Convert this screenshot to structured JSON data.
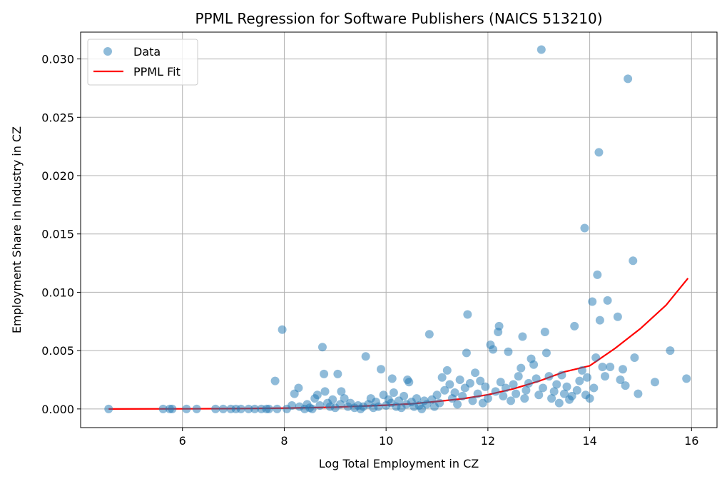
{
  "chart_data": {
    "type": "scatter",
    "title": "PPML Regression for Software Publishers (NAICS 513210)",
    "xlabel": "Log Total Employment in CZ",
    "ylabel": "Employment Share in Industry in CZ",
    "xlim": [
      4.0,
      16.5
    ],
    "ylim": [
      -0.0016,
      0.0323
    ],
    "xticks": [
      6,
      8,
      10,
      12,
      14,
      16
    ],
    "xtick_labels": [
      "6",
      "8",
      "10",
      "12",
      "14",
      "16"
    ],
    "yticks": [
      0.0,
      0.005,
      0.01,
      0.015,
      0.02,
      0.025,
      0.03
    ],
    "ytick_labels": [
      "0.000",
      "0.005",
      "0.010",
      "0.015",
      "0.020",
      "0.025",
      "0.030"
    ],
    "grid": true,
    "legend_position": "top-left",
    "colors": {
      "data": "#1f77b4",
      "fit": "#ff0000"
    },
    "series": [
      {
        "name": "Data",
        "kind": "scatter",
        "points": [
          [
            4.55,
            0.0
          ],
          [
            5.62,
            0.0
          ],
          [
            5.75,
            0.0
          ],
          [
            5.8,
            0.0
          ],
          [
            6.08,
            0.0
          ],
          [
            6.28,
            0.0
          ],
          [
            6.65,
            0.0
          ],
          [
            6.8,
            0.0
          ],
          [
            6.95,
            0.0
          ],
          [
            7.05,
            0.0
          ],
          [
            7.15,
            0.0
          ],
          [
            7.3,
            0.0
          ],
          [
            7.42,
            0.0
          ],
          [
            7.55,
            0.0
          ],
          [
            7.65,
            0.0
          ],
          [
            7.7,
            0.0
          ],
          [
            7.82,
            0.0024
          ],
          [
            7.86,
            0.0
          ],
          [
            7.96,
            0.0068
          ],
          [
            8.05,
            0.0
          ],
          [
            8.15,
            0.0003
          ],
          [
            8.2,
            0.0013
          ],
          [
            8.28,
            0.0018
          ],
          [
            8.3,
            0.0002
          ],
          [
            8.4,
            0.0
          ],
          [
            8.45,
            0.0004
          ],
          [
            8.5,
            0.0001
          ],
          [
            8.55,
            0.0
          ],
          [
            8.6,
            0.0009
          ],
          [
            8.65,
            0.0012
          ],
          [
            8.7,
            0.0003
          ],
          [
            8.75,
            0.0053
          ],
          [
            8.78,
            0.003
          ],
          [
            8.8,
            0.0015
          ],
          [
            8.85,
            0.0005
          ],
          [
            8.9,
            0.0002
          ],
          [
            8.95,
            0.0008
          ],
          [
            9.0,
            0.0001
          ],
          [
            9.05,
            0.003
          ],
          [
            9.1,
            0.0004
          ],
          [
            9.12,
            0.0015
          ],
          [
            9.18,
            0.0009
          ],
          [
            9.25,
            0.0002
          ],
          [
            9.3,
            0.0005
          ],
          [
            9.38,
            0.0001
          ],
          [
            9.45,
            0.0003
          ],
          [
            9.5,
            0.0
          ],
          [
            9.55,
            0.0002
          ],
          [
            9.6,
            0.0045
          ],
          [
            9.65,
            0.0004
          ],
          [
            9.7,
            0.0009
          ],
          [
            9.75,
            0.0001
          ],
          [
            9.8,
            0.0006
          ],
          [
            9.85,
            0.0002
          ],
          [
            9.9,
            0.0034
          ],
          [
            9.95,
            0.0012
          ],
          [
            10.0,
            0.0003
          ],
          [
            10.05,
            0.0008
          ],
          [
            10.1,
            0.0005
          ],
          [
            10.12,
            0.0026
          ],
          [
            10.15,
            0.0014
          ],
          [
            10.2,
            0.0002
          ],
          [
            10.25,
            0.0007
          ],
          [
            10.3,
            0.0001
          ],
          [
            10.35,
            0.0011
          ],
          [
            10.4,
            0.0004
          ],
          [
            10.42,
            0.0025
          ],
          [
            10.45,
            0.0023
          ],
          [
            10.5,
            0.0006
          ],
          [
            10.55,
            0.0002
          ],
          [
            10.6,
            0.0009
          ],
          [
            10.65,
            0.0003
          ],
          [
            10.7,
            0.0
          ],
          [
            10.75,
            0.0007
          ],
          [
            10.8,
            0.0004
          ],
          [
            10.85,
            0.0064
          ],
          [
            10.9,
            0.0008
          ],
          [
            10.95,
            0.0002
          ],
          [
            11.0,
            0.0012
          ],
          [
            11.05,
            0.0005
          ],
          [
            11.1,
            0.0027
          ],
          [
            11.15,
            0.0016
          ],
          [
            11.2,
            0.0033
          ],
          [
            11.25,
            0.0021
          ],
          [
            11.3,
            0.0009
          ],
          [
            11.35,
            0.0014
          ],
          [
            11.4,
            0.0004
          ],
          [
            11.45,
            0.0025
          ],
          [
            11.5,
            0.0011
          ],
          [
            11.55,
            0.0018
          ],
          [
            11.58,
            0.0048
          ],
          [
            11.6,
            0.0081
          ],
          [
            11.65,
            0.0022
          ],
          [
            11.7,
            0.0007
          ],
          [
            11.75,
            0.0031
          ],
          [
            11.8,
            0.0013
          ],
          [
            11.85,
            0.0024
          ],
          [
            11.9,
            0.0005
          ],
          [
            11.95,
            0.0019
          ],
          [
            12.0,
            0.0009
          ],
          [
            12.05,
            0.0055
          ],
          [
            12.1,
            0.0051
          ],
          [
            12.15,
            0.0015
          ],
          [
            12.2,
            0.0066
          ],
          [
            12.22,
            0.0071
          ],
          [
            12.25,
            0.0023
          ],
          [
            12.3,
            0.0011
          ],
          [
            12.35,
            0.0018
          ],
          [
            12.4,
            0.0049
          ],
          [
            12.45,
            0.0007
          ],
          [
            12.5,
            0.0021
          ],
          [
            12.55,
            0.0013
          ],
          [
            12.6,
            0.0028
          ],
          [
            12.65,
            0.0035
          ],
          [
            12.68,
            0.0062
          ],
          [
            12.72,
            0.0009
          ],
          [
            12.75,
            0.0016
          ],
          [
            12.8,
            0.0022
          ],
          [
            12.85,
            0.0043
          ],
          [
            12.9,
            0.0038
          ],
          [
            12.95,
            0.0026
          ],
          [
            13.0,
            0.0012
          ],
          [
            13.05,
            0.0308
          ],
          [
            13.08,
            0.0018
          ],
          [
            13.12,
            0.0066
          ],
          [
            13.15,
            0.0048
          ],
          [
            13.2,
            0.0028
          ],
          [
            13.25,
            0.0009
          ],
          [
            13.3,
            0.0015
          ],
          [
            13.35,
            0.0021
          ],
          [
            13.4,
            0.0005
          ],
          [
            13.45,
            0.0029
          ],
          [
            13.5,
            0.0013
          ],
          [
            13.55,
            0.0019
          ],
          [
            13.6,
            0.0008
          ],
          [
            13.65,
            0.0011
          ],
          [
            13.7,
            0.0071
          ],
          [
            13.75,
            0.0016
          ],
          [
            13.8,
            0.0024
          ],
          [
            13.85,
            0.0033
          ],
          [
            13.9,
            0.0155
          ],
          [
            13.92,
            0.0012
          ],
          [
            13.95,
            0.0027
          ],
          [
            14.0,
            0.0009
          ],
          [
            14.05,
            0.0092
          ],
          [
            14.08,
            0.0018
          ],
          [
            14.12,
            0.0044
          ],
          [
            14.15,
            0.0115
          ],
          [
            14.18,
            0.022
          ],
          [
            14.2,
            0.0076
          ],
          [
            14.25,
            0.0036
          ],
          [
            14.3,
            0.0028
          ],
          [
            14.35,
            0.0093
          ],
          [
            14.4,
            0.0036
          ],
          [
            14.55,
            0.0079
          ],
          [
            14.6,
            0.0025
          ],
          [
            14.65,
            0.0034
          ],
          [
            14.7,
            0.002
          ],
          [
            14.75,
            0.0283
          ],
          [
            14.85,
            0.0127
          ],
          [
            14.88,
            0.0044
          ],
          [
            14.95,
            0.0013
          ],
          [
            15.28,
            0.0023
          ],
          [
            15.58,
            0.005
          ],
          [
            15.9,
            0.0026
          ]
        ]
      },
      {
        "name": "PPML Fit",
        "kind": "line",
        "points": [
          [
            4.55,
            0.0
          ],
          [
            6.0,
            1e-05
          ],
          [
            7.0,
            3e-05
          ],
          [
            8.0,
            7e-05
          ],
          [
            9.0,
            0.00015
          ],
          [
            10.0,
            0.00032
          ],
          [
            10.5,
            0.00044
          ],
          [
            11.0,
            0.00064
          ],
          [
            11.5,
            0.00087
          ],
          [
            12.0,
            0.00122
          ],
          [
            12.5,
            0.00172
          ],
          [
            13.0,
            0.00238
          ],
          [
            13.5,
            0.00318
          ],
          [
            14.0,
            0.0037
          ],
          [
            14.5,
            0.0052
          ],
          [
            15.0,
            0.0069
          ],
          [
            15.5,
            0.0089
          ],
          [
            15.93,
            0.0112
          ]
        ]
      }
    ]
  }
}
